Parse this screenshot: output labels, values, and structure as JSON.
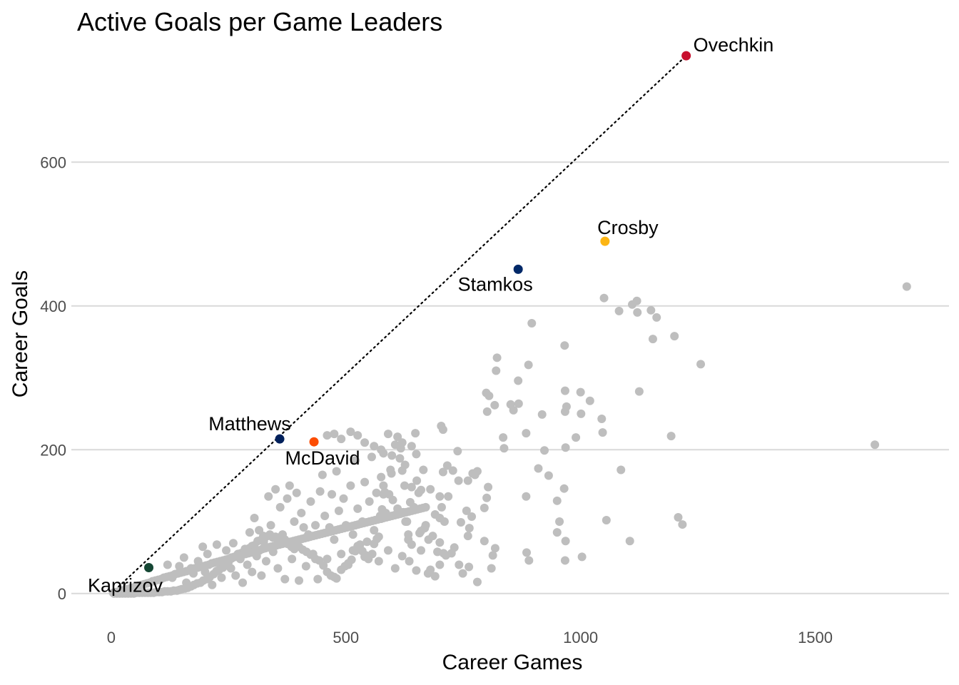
{
  "chart_data": {
    "type": "scatter",
    "title": "Active Goals per Game Leaders",
    "xlabel": "Career Games",
    "ylabel": "Career Goals",
    "xlim": [
      -85,
      1785
    ],
    "ylim": [
      -28,
      768
    ],
    "x_ticks": [
      0,
      500,
      1000,
      1500
    ],
    "x_tick_labels": [
      "0",
      "500",
      "1000",
      "1500"
    ],
    "y_ticks": [
      0,
      200,
      400,
      600
    ],
    "y_tick_labels": [
      "0",
      "200",
      "400",
      "600"
    ],
    "grid": "horizontal major only",
    "reference_line": {
      "style": "dotted",
      "color": "#000000",
      "from": [
        0,
        0
      ],
      "to": [
        1225,
        748
      ]
    },
    "background_color": "#bebebe",
    "background_points": [
      [
        1695,
        427
      ],
      [
        1627,
        207
      ],
      [
        1256,
        319
      ],
      [
        1200,
        358
      ],
      [
        1193,
        219
      ],
      [
        1208,
        106
      ],
      [
        1217,
        96
      ],
      [
        1162,
        384
      ],
      [
        1150,
        394
      ],
      [
        1154,
        354
      ],
      [
        1120,
        407
      ],
      [
        1121,
        391
      ],
      [
        1110,
        402
      ],
      [
        1125,
        281
      ],
      [
        1086,
        172
      ],
      [
        1105,
        73
      ],
      [
        1082,
        393
      ],
      [
        1050,
        411
      ],
      [
        1045,
        243
      ],
      [
        1047,
        224
      ],
      [
        1055,
        102
      ],
      [
        1020,
        268
      ],
      [
        1000,
        280
      ],
      [
        1001,
        250
      ],
      [
        1003,
        51
      ],
      [
        990,
        217
      ],
      [
        970,
        260
      ],
      [
        967,
        282
      ],
      [
        965,
        146
      ],
      [
        968,
        73
      ],
      [
        967,
        46
      ],
      [
        968,
        203
      ],
      [
        967,
        253
      ],
      [
        966,
        345
      ],
      [
        955,
        100
      ],
      [
        950,
        85
      ],
      [
        950,
        129
      ],
      [
        932,
        164
      ],
      [
        923,
        199
      ],
      [
        918,
        249
      ],
      [
        910,
        174
      ],
      [
        896,
        376
      ],
      [
        889,
        318
      ],
      [
        885,
        57
      ],
      [
        890,
        46
      ],
      [
        884,
        223
      ],
      [
        884,
        135
      ],
      [
        868,
        264
      ],
      [
        867,
        296
      ],
      [
        857,
        255
      ],
      [
        851,
        263
      ],
      [
        835,
        217
      ],
      [
        837,
        202
      ],
      [
        820,
        310
      ],
      [
        822,
        328
      ],
      [
        817,
        262
      ],
      [
        805,
        275
      ],
      [
        801,
        253
      ],
      [
        799,
        279
      ],
      [
        795,
        119
      ],
      [
        800,
        133
      ],
      [
        813,
        53
      ],
      [
        818,
        63
      ],
      [
        803,
        148
      ],
      [
        780,
        170
      ],
      [
        775,
        165
      ],
      [
        770,
        167
      ],
      [
        760,
        157
      ],
      [
        757,
        115
      ],
      [
        760,
        80
      ],
      [
        763,
        91
      ],
      [
        768,
        107
      ],
      [
        795,
        73
      ],
      [
        810,
        35
      ],
      [
        780,
        16
      ],
      [
        762,
        37
      ],
      [
        749,
        28
      ],
      [
        725,
        56
      ],
      [
        731,
        64
      ],
      [
        741,
        40
      ],
      [
        745,
        99
      ],
      [
        740,
        157
      ],
      [
        738,
        198
      ],
      [
        728,
        171
      ],
      [
        716,
        178
      ],
      [
        718,
        135
      ],
      [
        710,
        100
      ],
      [
        707,
        228
      ],
      [
        703,
        233
      ],
      [
        707,
        169
      ],
      [
        704,
        120
      ],
      [
        700,
        105
      ],
      [
        700,
        71
      ],
      [
        708,
        56
      ],
      [
        713,
        53
      ],
      [
        700,
        40
      ],
      [
        690,
        24
      ],
      [
        680,
        33
      ],
      [
        676,
        75
      ],
      [
        668,
        91
      ],
      [
        660,
        87
      ],
      [
        657,
        84
      ],
      [
        660,
        144
      ],
      [
        650,
        194
      ],
      [
        648,
        223
      ],
      [
        651,
        157
      ],
      [
        640,
        148
      ],
      [
        637,
        127
      ],
      [
        633,
        82
      ],
      [
        633,
        75
      ],
      [
        627,
        100
      ],
      [
        622,
        113
      ],
      [
        620,
        171
      ],
      [
        626,
        179
      ],
      [
        617,
        202
      ],
      [
        605,
        207
      ],
      [
        598,
        192
      ],
      [
        597,
        167
      ],
      [
        592,
        138
      ],
      [
        583,
        141
      ],
      [
        580,
        150
      ],
      [
        580,
        138
      ],
      [
        577,
        117
      ],
      [
        575,
        104
      ],
      [
        573,
        108
      ],
      [
        570,
        79
      ],
      [
        566,
        76
      ],
      [
        560,
        69
      ],
      [
        556,
        55
      ],
      [
        548,
        48
      ],
      [
        543,
        53
      ],
      [
        540,
        51
      ],
      [
        535,
        59
      ],
      [
        530,
        68
      ],
      [
        525,
        66
      ],
      [
        520,
        59
      ],
      [
        515,
        60
      ],
      [
        512,
        47
      ],
      [
        505,
        42
      ],
      [
        498,
        38
      ],
      [
        490,
        33
      ],
      [
        480,
        21
      ],
      [
        475,
        23
      ],
      [
        468,
        25
      ],
      [
        460,
        30
      ],
      [
        452,
        39
      ],
      [
        443,
        46
      ],
      [
        435,
        48
      ],
      [
        425,
        54
      ],
      [
        416,
        58
      ],
      [
        408,
        61
      ],
      [
        400,
        65
      ],
      [
        390,
        62
      ],
      [
        384,
        65
      ],
      [
        376,
        69
      ],
      [
        370,
        75
      ],
      [
        362,
        79
      ],
      [
        355,
        74
      ],
      [
        350,
        79
      ],
      [
        344,
        78
      ],
      [
        338,
        82
      ],
      [
        330,
        79
      ],
      [
        324,
        80
      ],
      [
        318,
        74
      ],
      [
        312,
        73
      ],
      [
        305,
        67
      ],
      [
        300,
        66
      ],
      [
        294,
        63
      ],
      [
        288,
        60
      ],
      [
        282,
        58
      ],
      [
        276,
        56
      ],
      [
        270,
        55
      ],
      [
        264,
        51
      ],
      [
        257,
        49
      ],
      [
        250,
        44
      ],
      [
        244,
        40
      ],
      [
        238,
        36
      ],
      [
        230,
        33
      ],
      [
        224,
        31
      ],
      [
        218,
        27
      ],
      [
        210,
        23
      ],
      [
        203,
        20
      ],
      [
        196,
        18
      ],
      [
        190,
        15
      ],
      [
        183,
        14
      ],
      [
        176,
        12
      ],
      [
        170,
        10
      ],
      [
        163,
        8
      ],
      [
        157,
        7
      ],
      [
        150,
        6
      ],
      [
        145,
        5
      ],
      [
        140,
        4
      ],
      [
        133,
        4
      ],
      [
        127,
        3
      ],
      [
        120,
        3
      ],
      [
        114,
        3
      ],
      [
        108,
        2
      ],
      [
        102,
        2
      ],
      [
        96,
        2
      ],
      [
        90,
        1
      ],
      [
        84,
        1
      ],
      [
        78,
        1
      ],
      [
        72,
        1
      ],
      [
        66,
        1
      ],
      [
        60,
        1
      ],
      [
        54,
        1
      ],
      [
        48,
        0
      ],
      [
        42,
        0
      ],
      [
        36,
        0
      ],
      [
        30,
        0
      ],
      [
        24,
        0
      ],
      [
        18,
        0
      ],
      [
        12,
        0
      ],
      [
        6,
        0
      ],
      [
        4,
        1
      ],
      [
        10,
        2
      ],
      [
        16,
        3
      ],
      [
        22,
        4
      ],
      [
        28,
        5
      ],
      [
        34,
        6
      ],
      [
        40,
        7
      ],
      [
        46,
        8
      ],
      [
        52,
        10
      ],
      [
        58,
        11
      ],
      [
        64,
        12
      ],
      [
        70,
        13
      ],
      [
        76,
        14
      ],
      [
        82,
        15
      ],
      [
        88,
        17
      ],
      [
        94,
        18
      ],
      [
        100,
        19
      ],
      [
        106,
        20
      ],
      [
        112,
        22
      ],
      [
        118,
        23
      ],
      [
        124,
        24
      ],
      [
        130,
        25
      ],
      [
        136,
        27
      ],
      [
        142,
        28
      ],
      [
        148,
        29
      ],
      [
        154,
        30
      ],
      [
        160,
        31
      ],
      [
        166,
        32
      ],
      [
        172,
        34
      ],
      [
        178,
        35
      ],
      [
        184,
        36
      ],
      [
        190,
        37
      ],
      [
        196,
        38
      ],
      [
        202,
        39
      ],
      [
        208,
        40
      ],
      [
        214,
        42
      ],
      [
        220,
        43
      ],
      [
        226,
        44
      ],
      [
        232,
        45
      ],
      [
        238,
        46
      ],
      [
        244,
        47
      ],
      [
        250,
        48
      ],
      [
        256,
        50
      ],
      [
        262,
        51
      ],
      [
        268,
        52
      ],
      [
        274,
        53
      ],
      [
        280,
        54
      ],
      [
        286,
        55
      ],
      [
        292,
        56
      ],
      [
        298,
        57
      ],
      [
        304,
        58
      ],
      [
        310,
        59
      ],
      [
        316,
        60
      ],
      [
        322,
        62
      ],
      [
        328,
        63
      ],
      [
        334,
        64
      ],
      [
        340,
        65
      ],
      [
        346,
        66
      ],
      [
        352,
        67
      ],
      [
        358,
        68
      ],
      [
        364,
        69
      ],
      [
        370,
        70
      ],
      [
        376,
        71
      ],
      [
        382,
        72
      ],
      [
        388,
        73
      ],
      [
        394,
        74
      ],
      [
        400,
        75
      ],
      [
        406,
        76
      ],
      [
        412,
        77
      ],
      [
        418,
        78
      ],
      [
        424,
        79
      ],
      [
        430,
        80
      ],
      [
        436,
        81
      ],
      [
        442,
        82
      ],
      [
        448,
        83
      ],
      [
        454,
        84
      ],
      [
        460,
        85
      ],
      [
        466,
        86
      ],
      [
        472,
        87
      ],
      [
        478,
        88
      ],
      [
        484,
        89
      ],
      [
        490,
        90
      ],
      [
        496,
        91
      ],
      [
        502,
        92
      ],
      [
        508,
        93
      ],
      [
        514,
        94
      ],
      [
        520,
        95
      ],
      [
        526,
        96
      ],
      [
        532,
        97
      ],
      [
        538,
        98
      ],
      [
        544,
        99
      ],
      [
        550,
        100
      ],
      [
        556,
        101
      ],
      [
        562,
        102
      ],
      [
        568,
        103
      ],
      [
        574,
        104
      ],
      [
        580,
        105
      ],
      [
        586,
        106
      ],
      [
        592,
        107
      ],
      [
        598,
        108
      ],
      [
        604,
        109
      ],
      [
        610,
        110
      ],
      [
        616,
        111
      ],
      [
        622,
        112
      ],
      [
        628,
        113
      ],
      [
        634,
        114
      ],
      [
        640,
        115
      ],
      [
        646,
        116
      ],
      [
        652,
        117
      ],
      [
        658,
        118
      ],
      [
        664,
        119
      ],
      [
        670,
        120
      ],
      [
        120,
        40
      ],
      [
        130,
        22
      ],
      [
        145,
        38
      ],
      [
        155,
        50
      ],
      [
        160,
        15
      ],
      [
        170,
        35
      ],
      [
        175,
        28
      ],
      [
        185,
        45
      ],
      [
        195,
        65
      ],
      [
        200,
        30
      ],
      [
        205,
        55
      ],
      [
        215,
        12
      ],
      [
        225,
        68
      ],
      [
        235,
        22
      ],
      [
        245,
        60
      ],
      [
        255,
        35
      ],
      [
        260,
        70
      ],
      [
        265,
        25
      ],
      [
        275,
        48
      ],
      [
        280,
        15
      ],
      [
        285,
        62
      ],
      [
        290,
        40
      ],
      [
        295,
        85
      ],
      [
        300,
        30
      ],
      [
        305,
        105
      ],
      [
        310,
        52
      ],
      [
        315,
        88
      ],
      [
        320,
        25
      ],
      [
        325,
        72
      ],
      [
        330,
        45
      ],
      [
        335,
        135
      ],
      [
        340,
        95
      ],
      [
        345,
        58
      ],
      [
        350,
        145
      ],
      [
        355,
        35
      ],
      [
        360,
        120
      ],
      [
        365,
        82
      ],
      [
        370,
        20
      ],
      [
        375,
        132
      ],
      [
        380,
        150
      ],
      [
        385,
        48
      ],
      [
        390,
        100
      ],
      [
        395,
        140
      ],
      [
        400,
        18
      ],
      [
        405,
        112
      ],
      [
        410,
        92
      ],
      [
        415,
        38
      ],
      [
        420,
        82
      ],
      [
        425,
        128
      ],
      [
        430,
        55
      ],
      [
        435,
        95
      ],
      [
        440,
        20
      ],
      [
        445,
        142
      ],
      [
        450,
        165
      ],
      [
        455,
        108
      ],
      [
        460,
        48
      ],
      [
        465,
        92
      ],
      [
        470,
        138
      ],
      [
        475,
        75
      ],
      [
        480,
        170
      ],
      [
        485,
        115
      ],
      [
        490,
        55
      ],
      [
        495,
        132
      ],
      [
        500,
        95
      ],
      [
        505,
        40
      ],
      [
        510,
        150
      ],
      [
        515,
        82
      ],
      [
        520,
        185
      ],
      [
        525,
        118
      ],
      [
        530,
        62
      ],
      [
        535,
        100
      ],
      [
        540,
        155
      ],
      [
        545,
        72
      ],
      [
        550,
        128
      ],
      [
        555,
        190
      ],
      [
        560,
        88
      ],
      [
        565,
        140
      ],
      [
        570,
        45
      ],
      [
        575,
        162
      ],
      [
        580,
        195
      ],
      [
        585,
        112
      ],
      [
        590,
        60
      ],
      [
        595,
        172
      ],
      [
        600,
        130
      ],
      [
        605,
        35
      ],
      [
        610,
        118
      ],
      [
        615,
        188
      ],
      [
        620,
        52
      ],
      [
        625,
        150
      ],
      [
        630,
        100
      ],
      [
        635,
        45
      ],
      [
        640,
        68
      ],
      [
        645,
        120
      ],
      [
        650,
        32
      ],
      [
        655,
        140
      ],
      [
        660,
        60
      ],
      [
        665,
        172
      ],
      [
        670,
        95
      ],
      [
        675,
        28
      ],
      [
        680,
        145
      ],
      [
        685,
        80
      ],
      [
        690,
        110
      ],
      [
        695,
        58
      ],
      [
        700,
        135
      ],
      [
        460,
        220
      ],
      [
        475,
        222
      ],
      [
        490,
        215
      ],
      [
        510,
        225
      ],
      [
        525,
        220
      ],
      [
        540,
        210
      ],
      [
        560,
        205
      ],
      [
        575,
        200
      ],
      [
        590,
        222
      ],
      [
        610,
        218
      ],
      [
        620,
        210
      ],
      [
        640,
        205
      ]
    ],
    "highlighted": [
      {
        "name": "Ovechkin",
        "x": 1225,
        "y": 748,
        "color": "#c8102e",
        "label_side": "above-right"
      },
      {
        "name": "Crosby",
        "x": 1052,
        "y": 490,
        "color": "#fcb514",
        "label_side": "above"
      },
      {
        "name": "Stamkos",
        "x": 867,
        "y": 451,
        "color": "#002868",
        "label_side": "below-left"
      },
      {
        "name": "Matthews",
        "x": 359,
        "y": 215,
        "color": "#00205b",
        "label_side": "above-left"
      },
      {
        "name": "McDavid",
        "x": 432,
        "y": 211,
        "color": "#fc4c02",
        "label_side": "below"
      },
      {
        "name": "Kaprizov",
        "x": 80,
        "y": 36,
        "color": "#154734",
        "label_side": "below-left"
      }
    ]
  }
}
